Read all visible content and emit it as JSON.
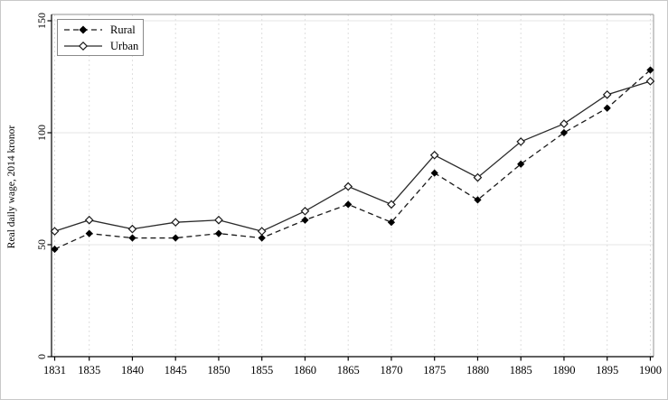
{
  "figure": {
    "y_axis_title": "Real daily wage, 2014 kronor"
  },
  "chart_data": {
    "type": "line",
    "title": "",
    "xlabel": "",
    "ylabel": "Real daily wage, 2014 kronor",
    "x": [
      1831,
      1835,
      1840,
      1845,
      1850,
      1855,
      1860,
      1865,
      1870,
      1875,
      1880,
      1885,
      1890,
      1895,
      1900
    ],
    "series": [
      {
        "name": "Rural",
        "line_style": "dashed",
        "marker": "filled-diamond",
        "color": "#1a1a1a",
        "values": [
          48,
          55,
          53,
          53,
          55,
          53,
          61,
          68,
          60,
          82,
          70,
          86,
          100,
          111,
          128
        ]
      },
      {
        "name": "Urban",
        "line_style": "solid",
        "marker": "open-diamond",
        "color": "#2b2b2b",
        "values": [
          56,
          61,
          57,
          60,
          61,
          56,
          65,
          76,
          68,
          90,
          80,
          96,
          104,
          117,
          123
        ]
      }
    ],
    "ylim": [
      0,
      150
    ],
    "yticks": [
      0,
      50,
      100,
      150
    ],
    "xticks": [
      1831,
      1835,
      1840,
      1845,
      1850,
      1855,
      1860,
      1865,
      1870,
      1875,
      1880,
      1885,
      1890,
      1895,
      1900
    ],
    "grid": true,
    "legend_position": "top-left",
    "colors": {
      "axis": "#000000",
      "plot_border": "#a6a6a6",
      "grid_vertical": "#dedede",
      "grid_horizontal": "#e4e4e4",
      "tick_label": "#000000"
    }
  }
}
